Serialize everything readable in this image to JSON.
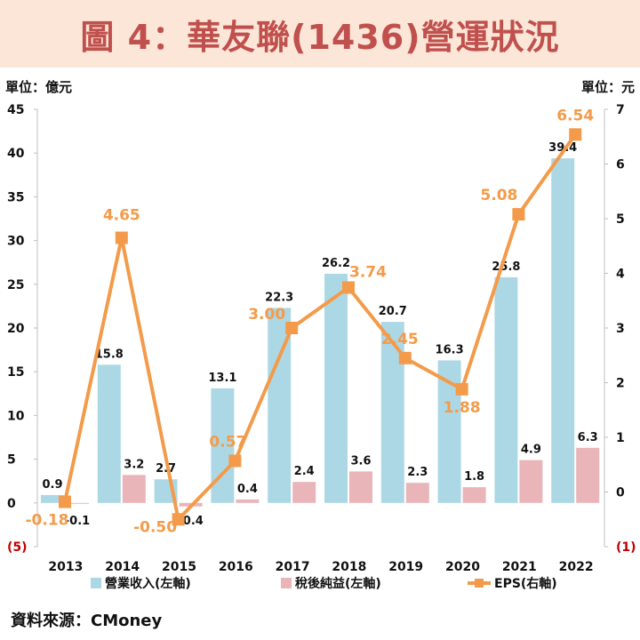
{
  "title": "圖 4：華友聯(1436)營運狀況",
  "unit_left": "單位：億元",
  "unit_right": "單位：元",
  "source": "資料來源：CMoney",
  "colors": {
    "revenue": "#acd8e6",
    "net_income": "#e9b5b8",
    "eps": "#f39b4a",
    "title": "#c0504d",
    "title_bg": "#fbe6d8",
    "axis_neg": "#c00000"
  },
  "chart_data": {
    "type": "bar",
    "categories": [
      "2013",
      "2014",
      "2015",
      "2016",
      "2017",
      "2018",
      "2019",
      "2020",
      "2021",
      "2022"
    ],
    "series": [
      {
        "name": "營業收入(左軸)",
        "type": "bar",
        "axis": "left",
        "values": [
          0.9,
          15.8,
          2.7,
          13.1,
          22.3,
          26.2,
          20.7,
          16.3,
          25.8,
          39.4
        ],
        "labels": [
          "0.9",
          "15.8",
          "2.7",
          "13.1",
          "22.3",
          "26.2",
          "20.7",
          "16.3",
          "25.8",
          "39.4"
        ]
      },
      {
        "name": "稅後純益(左軸)",
        "type": "bar",
        "axis": "left",
        "values": [
          -0.1,
          3.2,
          -0.4,
          0.4,
          2.4,
          3.6,
          2.3,
          1.8,
          4.9,
          6.3
        ],
        "labels": [
          "-0.1",
          "3.2",
          "-0.4",
          "0.4",
          "2.4",
          "3.6",
          "2.3",
          "1.8",
          "4.9",
          "6.3"
        ]
      },
      {
        "name": "EPS(右軸)",
        "type": "line",
        "axis": "right",
        "values": [
          -0.18,
          4.65,
          -0.5,
          0.57,
          3.0,
          3.74,
          2.45,
          1.88,
          5.08,
          6.54
        ],
        "labels": [
          "-0.18",
          "4.65",
          "-0.50",
          "0.57",
          "3.00",
          "3.74",
          "2.45",
          "1.88",
          "5.08",
          "6.54"
        ]
      }
    ],
    "left_axis": {
      "min": -5,
      "max": 45,
      "ticks": [
        "(5)",
        "0",
        "5",
        "10",
        "15",
        "20",
        "25",
        "30",
        "35",
        "40",
        "45"
      ]
    },
    "right_axis": {
      "min": -1,
      "max": 7,
      "ticks": [
        "(1)",
        "0",
        "1",
        "2",
        "3",
        "4",
        "5",
        "6",
        "7"
      ]
    },
    "grid": false,
    "legend_position": "bottom"
  }
}
